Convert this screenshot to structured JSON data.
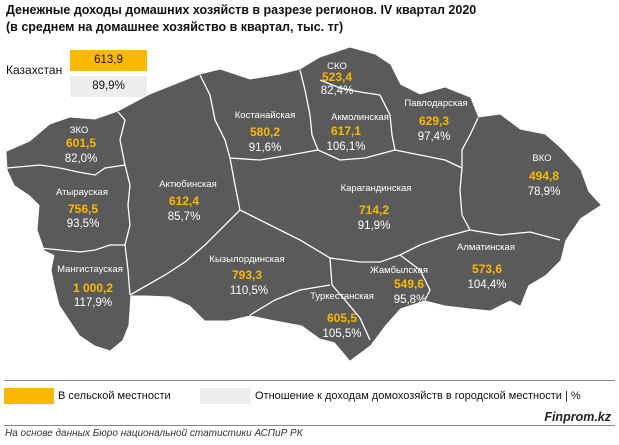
{
  "title": {
    "line1": "Денежные доходы домашних хозяйств в разрезе регионов. IV квартал 2020",
    "line2": "(в среднем на домашнее хозяйство в квартал, тыс. тг)"
  },
  "kazakhstan": {
    "label": "Казахстан",
    "rural": "613,9",
    "ratio": "89,9%"
  },
  "colors": {
    "accent": "#FBB800",
    "map_fill": "#5A5A5A",
    "border": "#ffffff",
    "ratio_box": "#EDEDED"
  },
  "regions": {
    "sko": {
      "name": "СКО",
      "rural": "523,4",
      "ratio": "82,4%"
    },
    "pavlodar": {
      "name": "Павлодарская",
      "rural": "629,3",
      "ratio": "97,4%"
    },
    "kostanay": {
      "name": "Костанайская",
      "rural": "580,2",
      "ratio": "91,6%"
    },
    "akmola": {
      "name": "Акмолинская",
      "rural": "617,1",
      "ratio": "106,1%"
    },
    "zko": {
      "name": "ЗКО",
      "rural": "601,5",
      "ratio": "82,0%"
    },
    "vko": {
      "name": "ВКО",
      "rural": "494,8",
      "ratio": "78,9%"
    },
    "atyrau": {
      "name": "Атырауская",
      "rural": "756,5",
      "ratio": "93,5%"
    },
    "aktobe": {
      "name": "Актюбинская",
      "rural": "612,4",
      "ratio": "85,7%"
    },
    "karaganda": {
      "name": "Карагандинская",
      "rural": "714,2",
      "ratio": "91,9%"
    },
    "almaty": {
      "name": "Алматинская",
      "rural": "573,6",
      "ratio": "104,4%"
    },
    "kyzylorda": {
      "name": "Кызылординская",
      "rural": "793,3",
      "ratio": "110,5%"
    },
    "mangystau": {
      "name": "Мангистауская",
      "rural": "1 000,2",
      "ratio": "117,9%"
    },
    "zhambyl": {
      "name": "Жамбылская",
      "rural": "549,6",
      "ratio": "95,8%"
    },
    "turkestan": {
      "name": "Туркестанская",
      "rural": "605,5",
      "ratio": "105,5%"
    }
  },
  "legend": {
    "rural": "В сельской местности",
    "ratio": "Отношение к доходам домохозяйств в городской местности | %"
  },
  "footer": {
    "source": "На основе данных Бюро национальной статистики АСПиР РК",
    "brand": "Finprom.kz"
  }
}
